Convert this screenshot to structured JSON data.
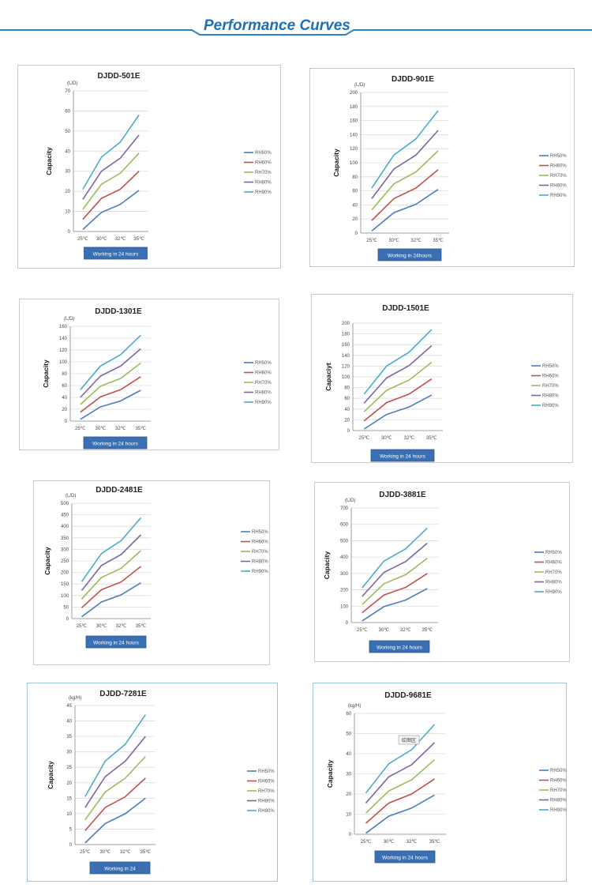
{
  "page": {
    "title": "Performance Curves",
    "header_color": "#1f6fb5",
    "line_color": "#2a86c7"
  },
  "series_colors": [
    "#4a7ebb",
    "#c0504d",
    "#9bbb59",
    "#8064a2",
    "#4bacc6"
  ],
  "chart_data": [
    {
      "type": "line",
      "title": "DJDD-501E",
      "unit": "(L/D)",
      "ylabel": "Capacity",
      "xlabel": "Working in 24 hours",
      "categories": [
        "25℃",
        "30℃",
        "32℃",
        "35℃"
      ],
      "ylim": [
        0,
        70
      ],
      "yticks": [
        0,
        10,
        20,
        30,
        40,
        50,
        60,
        70
      ],
      "series": [
        {
          "name": "RH50%",
          "values": [
            1,
            9.5,
            13.5,
            20.5
          ]
        },
        {
          "name": "RH60%",
          "values": [
            6,
            16.5,
            21,
            30
          ]
        },
        {
          "name": "RH70%",
          "values": [
            11,
            23.5,
            29,
            39
          ]
        },
        {
          "name": "RH80%",
          "values": [
            16,
            30,
            36.5,
            48
          ]
        },
        {
          "name": "RH90%",
          "values": [
            21,
            37,
            44.5,
            58
          ]
        }
      ]
    },
    {
      "type": "line",
      "title": "DJDD-901E",
      "unit": "(L/D)",
      "ylabel": "Capacity",
      "xlabel": "Working in 24hours",
      "categories": [
        "25℃",
        "30℃",
        "32℃",
        "35℃"
      ],
      "ylim": [
        0,
        200
      ],
      "yticks": [
        0,
        20,
        40,
        60,
        80,
        100,
        120,
        140,
        160,
        180,
        200
      ],
      "series": [
        {
          "name": "RH50%",
          "values": [
            3,
            29,
            41,
            62
          ]
        },
        {
          "name": "RH60%",
          "values": [
            18,
            49,
            64,
            90
          ]
        },
        {
          "name": "RH70%",
          "values": [
            33,
            70,
            87,
            117
          ]
        },
        {
          "name": "RH80%",
          "values": [
            49,
            91,
            111,
            146
          ]
        },
        {
          "name": "RH90%",
          "values": [
            64,
            111,
            134,
            174
          ]
        }
      ]
    },
    {
      "type": "line",
      "title": "DJDD-1301E",
      "unit": "(L/D)",
      "ylabel": "Capacity",
      "xlabel": "Working in 24 hours",
      "categories": [
        "25℃",
        "30℃",
        "32℃",
        "35℃"
      ],
      "ylim": [
        0,
        160
      ],
      "yticks": [
        0,
        20,
        40,
        60,
        80,
        100,
        120,
        140,
        160
      ],
      "series": [
        {
          "name": "RH50%",
          "values": [
            3,
            24,
            34,
            52
          ]
        },
        {
          "name": "RH60%",
          "values": [
            15,
            41,
            53,
            75
          ]
        },
        {
          "name": "RH70%",
          "values": [
            28,
            59,
            72,
            98
          ]
        },
        {
          "name": "RH80%",
          "values": [
            40,
            76,
            93,
            122
          ]
        },
        {
          "name": "RH90%",
          "values": [
            53,
            93,
            112,
            145
          ]
        }
      ]
    },
    {
      "type": "line",
      "title": "DJDD-1501E",
      "unit": "",
      "ylabel": "Capaciyt",
      "xlabel": "Working in 24 hours",
      "categories": [
        "25℃",
        "30℃",
        "32℃",
        "35℃"
      ],
      "ylim": [
        0,
        200
      ],
      "yticks": [
        0,
        20,
        40,
        60,
        80,
        100,
        120,
        140,
        160,
        180,
        200
      ],
      "series": [
        {
          "name": "RH50%",
          "values": [
            3,
            30,
            44,
            66
          ]
        },
        {
          "name": "RH60%",
          "values": [
            18,
            52,
            68,
            96
          ]
        },
        {
          "name": "RH70%",
          "values": [
            35,
            75,
            94,
            127
          ]
        },
        {
          "name": "RH80%",
          "values": [
            51,
            98,
            121,
            158
          ]
        },
        {
          "name": "RH90%",
          "values": [
            68,
            120,
            146,
            188
          ]
        }
      ]
    },
    {
      "type": "line",
      "title": "DJDD-2481E",
      "unit": "(L/D)",
      "ylabel": "Capacity",
      "xlabel": "Working in 24 hours",
      "categories": [
        "25℃",
        "30℃",
        "32℃",
        "35℃"
      ],
      "ylim": [
        0,
        500
      ],
      "yticks": [
        0,
        50,
        100,
        150,
        200,
        250,
        300,
        350,
        400,
        450,
        500
      ],
      "series": [
        {
          "name": "RH50%",
          "values": [
            8,
            72,
            103,
            155
          ]
        },
        {
          "name": "RH60%",
          "values": [
            47,
            125,
            159,
            226
          ]
        },
        {
          "name": "RH70%",
          "values": [
            85,
            178,
            218,
            295
          ]
        },
        {
          "name": "RH80%",
          "values": [
            122,
            230,
            278,
            363
          ]
        },
        {
          "name": "RH90%",
          "values": [
            160,
            282,
            338,
            437
          ]
        }
      ]
    },
    {
      "type": "line",
      "title": "DJDD-3881E",
      "unit": "(L/D)",
      "ylabel": "Capacity",
      "xlabel": "Working in 24 hours",
      "categories": [
        "25℃",
        "30℃",
        "32℃",
        "35℃"
      ],
      "ylim": [
        0,
        700
      ],
      "yticks": [
        0,
        100,
        200,
        300,
        400,
        500,
        600,
        700
      ],
      "series": [
        {
          "name": "RH50%",
          "values": [
            10,
            97,
            137,
            208
          ]
        },
        {
          "name": "RH60%",
          "values": [
            60,
            168,
            215,
            300
          ]
        },
        {
          "name": "RH70%",
          "values": [
            110,
            237,
            292,
            393
          ]
        },
        {
          "name": "RH80%",
          "values": [
            160,
            306,
            372,
            485
          ]
        },
        {
          "name": "RH90%",
          "values": [
            212,
            375,
            450,
            578
          ]
        }
      ]
    },
    {
      "type": "line",
      "title": "DJDD-7281E",
      "unit": "(kg/H)",
      "ylabel": "Capacity",
      "xlabel": "Working in 24",
      "categories": [
        "25℃",
        "30℃",
        "32℃",
        "35℃"
      ],
      "ylim": [
        0,
        45
      ],
      "yticks": [
        0,
        5,
        10,
        15,
        20,
        25,
        30,
        35,
        40,
        45
      ],
      "series": [
        {
          "name": "RH50%",
          "values": [
            0.5,
            6.8,
            10,
            15
          ]
        },
        {
          "name": "RH60%",
          "values": [
            4.5,
            12,
            15.5,
            21.5
          ]
        },
        {
          "name": "RH70%",
          "values": [
            8,
            17,
            21.5,
            28.5
          ]
        },
        {
          "name": "RH80%",
          "values": [
            12,
            22,
            27,
            35
          ]
        },
        {
          "name": "RH90%",
          "values": [
            15.5,
            27,
            32.5,
            42
          ]
        }
      ]
    },
    {
      "type": "line",
      "title": "DJDD-9681E",
      "unit": "(kg/H)",
      "ylabel": "Capacity",
      "xlabel": "Working in 24 hours",
      "categories": [
        "25℃",
        "30℃",
        "32℃",
        "35℃"
      ],
      "ylim": [
        0,
        60
      ],
      "yticks": [
        0,
        10,
        20,
        30,
        40,
        50,
        60
      ],
      "annotation": "绘图区",
      "series": [
        {
          "name": "RH50%",
          "values": [
            0.5,
            9,
            13,
            19.5
          ]
        },
        {
          "name": "RH60%",
          "values": [
            5.5,
            15.5,
            20,
            27.5
          ]
        },
        {
          "name": "RH70%",
          "values": [
            10.5,
            21.5,
            27,
            37
          ]
        },
        {
          "name": "RH80%",
          "values": [
            15.5,
            28.5,
            34.5,
            45.5
          ]
        },
        {
          "name": "RH90%",
          "values": [
            20.5,
            35,
            42,
            54.5
          ]
        }
      ]
    }
  ]
}
